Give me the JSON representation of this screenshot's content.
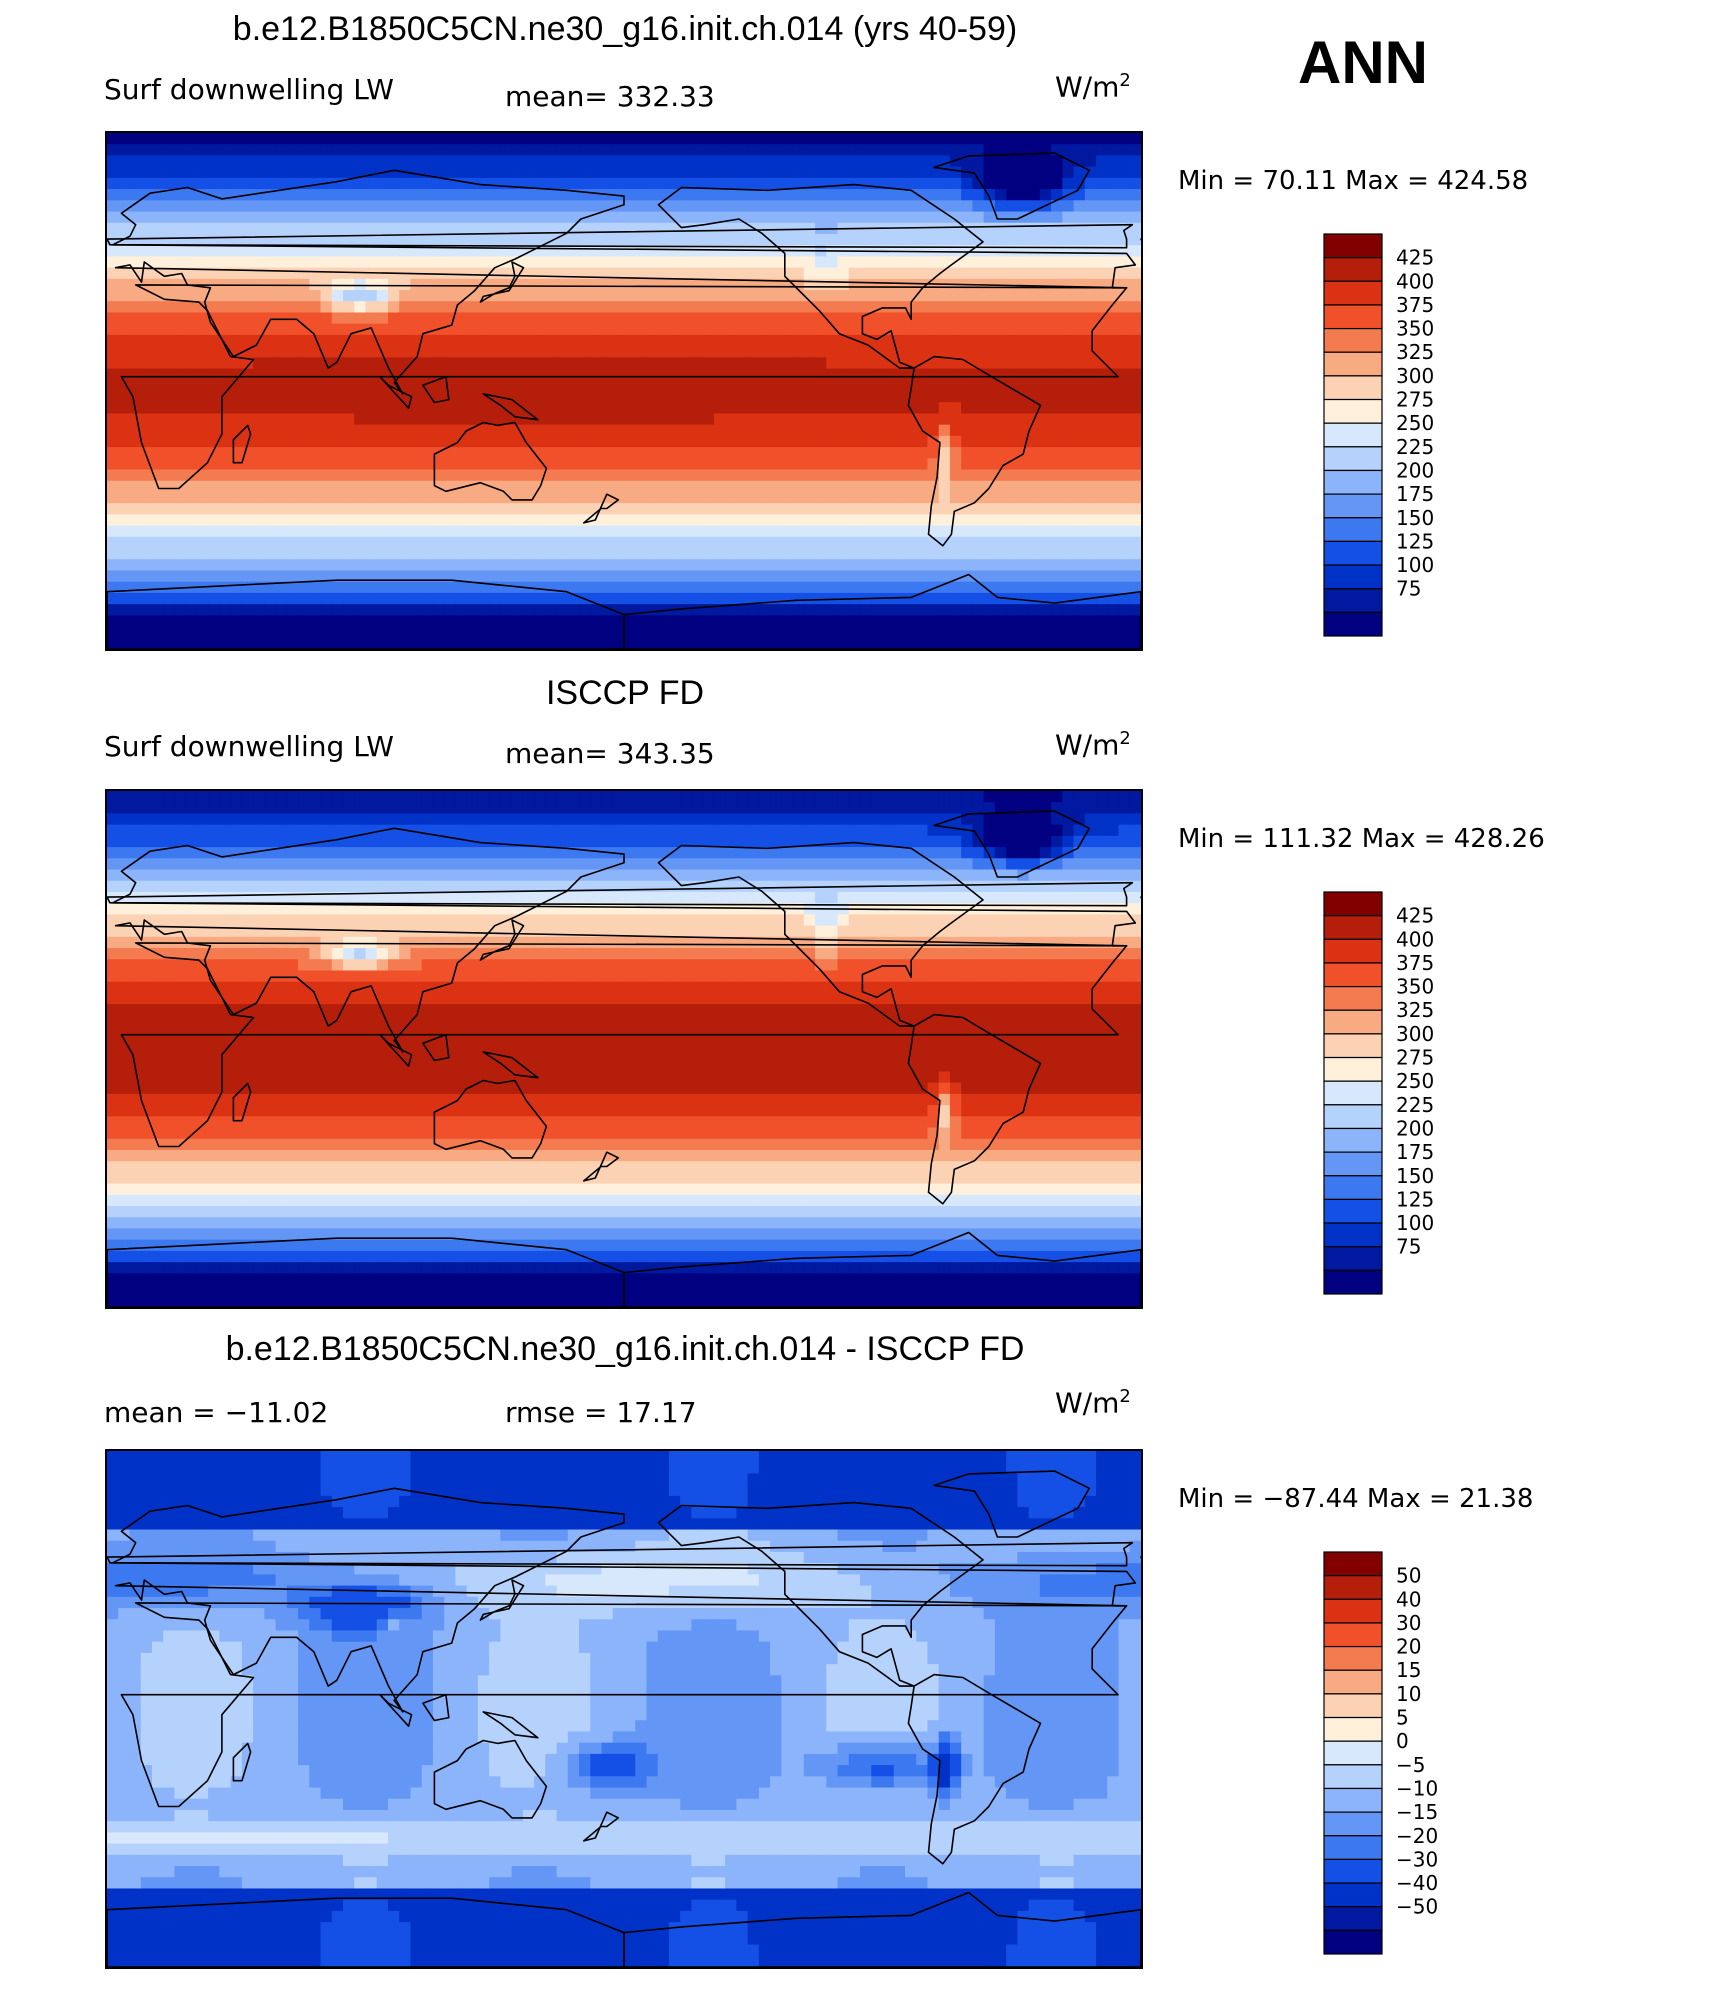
{
  "header": {
    "season": "ANN"
  },
  "panels": [
    {
      "title": "b.e12.B1850C5CN.ne30_g16.init.ch.014 (yrs 40-59)",
      "left": "Surf downwelling LW",
      "center": "mean= 332.33",
      "units": "W/m",
      "units_sup": "2",
      "minmax": "Min =   70.11 Max = 424.58",
      "kind": "abs",
      "scale": 1.0
    },
    {
      "title": "ISCCP FD",
      "left": "Surf downwelling LW",
      "center": "mean= 343.35",
      "units": "W/m",
      "units_sup": "2",
      "minmax": "Min = 111.32 Max = 428.26",
      "kind": "abs",
      "scale": 1.04
    },
    {
      "title": "b.e12.B1850C5CN.ne30_g16.init.ch.014 - ISCCP FD",
      "left": "mean = −11.02",
      "center": "rmse =   17.17",
      "units": "W/m",
      "units_sup": "2",
      "minmax": "Min = −87.44 Max =   21.38",
      "kind": "diff",
      "scale": 1.0
    }
  ],
  "chart_data": [
    {
      "type": "heatmap",
      "title": "b.e12.B1850C5CN.ne30_g16.init.ch.014 (yrs 40-59)",
      "variable": "Surf downwelling LW",
      "units": "W/m2",
      "mean": 332.33,
      "min": 70.11,
      "max": 424.58,
      "levels": [
        75,
        100,
        125,
        150,
        175,
        200,
        225,
        250,
        275,
        300,
        325,
        350,
        375,
        400,
        425
      ],
      "colors": [
        "#000080",
        "#0019a0",
        "#0032c8",
        "#1450e6",
        "#3c78f0",
        "#6496f5",
        "#8cb4fa",
        "#b4d2fc",
        "#d7e8fd",
        "#fff0dc",
        "#fcd2b4",
        "#f8aa82",
        "#f47a50",
        "#f0502a",
        "#dc3214",
        "#b41e0a",
        "#820000"
      ]
    },
    {
      "type": "heatmap",
      "title": "ISCCP FD",
      "variable": "Surf downwelling LW",
      "units": "W/m2",
      "mean": 343.35,
      "min": 111.32,
      "max": 428.26,
      "levels": [
        75,
        100,
        125,
        150,
        175,
        200,
        225,
        250,
        275,
        300,
        325,
        350,
        375,
        400,
        425
      ],
      "colors": [
        "#000080",
        "#0019a0",
        "#0032c8",
        "#1450e6",
        "#3c78f0",
        "#6496f5",
        "#8cb4fa",
        "#b4d2fc",
        "#d7e8fd",
        "#fff0dc",
        "#fcd2b4",
        "#f8aa82",
        "#f47a50",
        "#f0502a",
        "#dc3214",
        "#b41e0a",
        "#820000"
      ]
    },
    {
      "type": "heatmap",
      "title": "b.e12.B1850C5CN.ne30_g16.init.ch.014 - ISCCP FD",
      "units": "W/m2",
      "mean": -11.02,
      "rmse": 17.17,
      "min": -87.44,
      "max": 21.38,
      "levels": [
        -50,
        -40,
        -30,
        -20,
        -15,
        -10,
        -5,
        0,
        5,
        10,
        15,
        20,
        30,
        40,
        50
      ],
      "colors": [
        "#000080",
        "#0019a0",
        "#0032c8",
        "#1450e6",
        "#3c78f0",
        "#6496f5",
        "#8cb4fa",
        "#b4d2fc",
        "#d7e8fd",
        "#fff0dc",
        "#fcd2b4",
        "#f8aa82",
        "#f47a50",
        "#f0502a",
        "#dc3214",
        "#b41e0a",
        "#820000"
      ]
    }
  ]
}
